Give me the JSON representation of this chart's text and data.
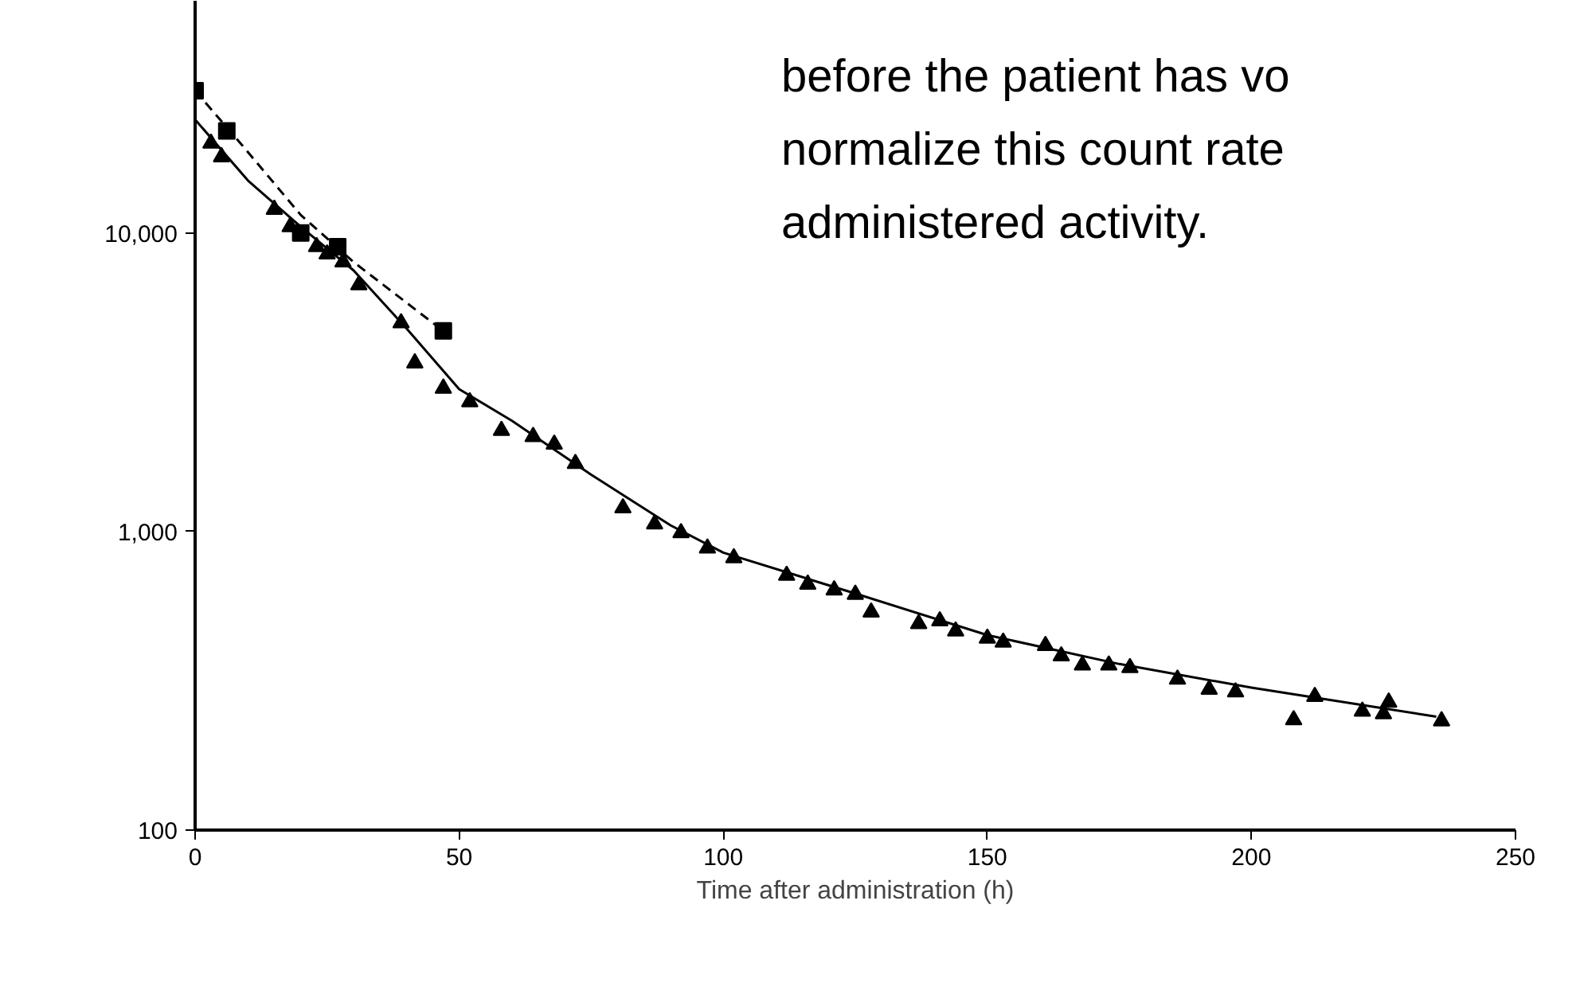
{
  "chart_data": {
    "type": "scatter",
    "xlabel": "Time after administration (h)",
    "annotations": [
      "before the patient has vo",
      "normalize this count rate",
      "administered activity."
    ],
    "log": "y",
    "grid": false,
    "xlim": [
      0,
      250
    ],
    "xticks": [
      0,
      50,
      100,
      150,
      200,
      250
    ],
    "ylim": [
      100,
      60000
    ],
    "yticks": [
      {
        "value": 100,
        "label": "100"
      },
      {
        "value": 1000,
        "label": "1,000"
      },
      {
        "value": 10000,
        "label": "10,000"
      }
    ],
    "series": [
      {
        "type": "line",
        "color": "#000000",
        "line_style": "solid",
        "marker": "none",
        "x": [
          0,
          10,
          20,
          30,
          40,
          50,
          60,
          75,
          90,
          100,
          125,
          150,
          175,
          200,
          235
        ],
        "values": [
          24000,
          15000,
          10500,
          7500,
          4800,
          3000,
          2350,
          1550,
          1050,
          850,
          620,
          450,
          360,
          300,
          240
        ]
      },
      {
        "type": "line",
        "color": "#000000",
        "line_style": "dashed",
        "marker": "none",
        "x": [
          0,
          9,
          20,
          30,
          47
        ],
        "values": [
          30000,
          19600,
          11500,
          8000,
          4700
        ]
      },
      {
        "color": "#000000",
        "marker": "triangle",
        "x": [
          3,
          5,
          15,
          18,
          23,
          25,
          28,
          31,
          39,
          41.6,
          47,
          52,
          58,
          64,
          68,
          72,
          81,
          87,
          92,
          97,
          102,
          112,
          116,
          121,
          125,
          128,
          137,
          141,
          144,
          150,
          153,
          161,
          164,
          168,
          173,
          177,
          186,
          192,
          197,
          208,
          212,
          221,
          225,
          226,
          236
        ],
        "values": [
          20000,
          18000,
          12000,
          10500,
          9000,
          8500,
          8000,
          6700,
          5000,
          3670,
          3020,
          2720,
          2180,
          2080,
          1960,
          1690,
          1200,
          1060,
          990,
          880,
          816,
          713,
          666,
          637,
          616,
          537,
          491,
          502,
          464,
          439,
          426,
          415,
          383,
          357,
          357,
          350,
          320,
          296,
          290,
          234,
          280,
          250,
          245,
          268,
          232
        ]
      },
      {
        "color": "#000000",
        "marker": "square",
        "x": [
          0,
          6,
          20,
          27,
          47
        ],
        "values": [
          30000,
          22000,
          10000,
          9000,
          4700
        ]
      }
    ]
  }
}
